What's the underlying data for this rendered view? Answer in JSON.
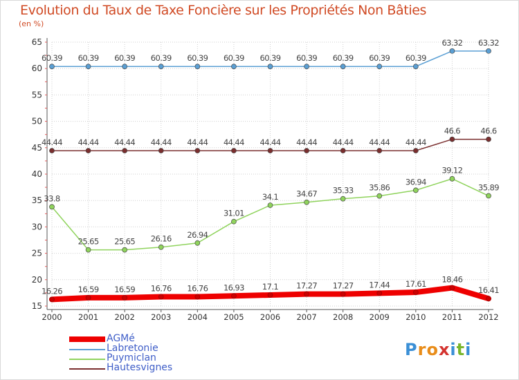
{
  "title": "Evolution du Taux de Taxe Foncière sur les Propriétés Non Bâties",
  "unit_label": "(en %)",
  "logo": {
    "text": "Proxiti",
    "letters": [
      "P",
      "r",
      "o",
      "x",
      "i",
      "t",
      "i"
    ],
    "colors": [
      "#3a8fd6",
      "#e98d1a",
      "#e98d1a",
      "#d4332f",
      "#3a8fd6",
      "#79b62c",
      "#3a8fd6"
    ]
  },
  "chart_data": {
    "type": "line",
    "title": "Evolution du Taux de Taxe Foncière sur les Propriétés Non Bâties",
    "ylabel": "(en %)",
    "xlabel": "",
    "x": [
      "2000",
      "2001",
      "2002",
      "2003",
      "2004",
      "2005",
      "2006",
      "2007",
      "2008",
      "2009",
      "2010",
      "2011",
      "2012"
    ],
    "ylim": [
      15,
      65
    ],
    "yticks": [
      15,
      20,
      25,
      30,
      35,
      40,
      45,
      50,
      55,
      60,
      65
    ],
    "grid": true,
    "legend_position": "bottom-left",
    "series": [
      {
        "name": "AGMé",
        "color": "#ee0000",
        "values": [
          16.26,
          16.59,
          16.59,
          16.76,
          16.76,
          16.93,
          17.1,
          17.27,
          17.27,
          17.44,
          17.61,
          18.46,
          16.41
        ],
        "labels": [
          "16.26",
          "16.59",
          "16.59",
          "16.76",
          "16.76",
          "16.93",
          "17.1",
          "17.27",
          "17.27",
          "17.44",
          "17.61",
          "18.46",
          "16.41"
        ]
      },
      {
        "name": "Labretonie",
        "color": "#5a9fd4",
        "values": [
          60.39,
          60.39,
          60.39,
          60.39,
          60.39,
          60.39,
          60.39,
          60.39,
          60.39,
          60.39,
          60.39,
          63.32,
          63.32
        ],
        "labels": [
          "60.39",
          "60.39",
          "60.39",
          "60.39",
          "60.39",
          "60.39",
          "60.39",
          "60.39",
          "60.39",
          "60.39",
          "60.39",
          "63.32",
          "63.32"
        ]
      },
      {
        "name": "Puymiclan",
        "color": "#8fd35c",
        "values": [
          33.8,
          25.65,
          25.65,
          26.16,
          26.94,
          31.01,
          34.1,
          34.67,
          35.33,
          35.86,
          36.94,
          39.12,
          35.89
        ],
        "labels": [
          "33.8",
          "25.65",
          "25.65",
          "26.16",
          "26.94",
          "31.01",
          "34.1",
          "34.67",
          "35.33",
          "35.86",
          "36.94",
          "39.12",
          "35.89"
        ]
      },
      {
        "name": "Hautesvignes",
        "color": "#7a2e2e",
        "values": [
          44.44,
          44.44,
          44.44,
          44.44,
          44.44,
          44.44,
          44.44,
          44.44,
          44.44,
          44.44,
          44.44,
          46.6,
          46.6
        ],
        "labels": [
          "44.44",
          "44.44",
          "44.44",
          "44.44",
          "44.44",
          "44.44",
          "44.44",
          "44.44",
          "44.44",
          "44.44",
          "44.44",
          "46.6",
          "46.6"
        ]
      }
    ]
  }
}
